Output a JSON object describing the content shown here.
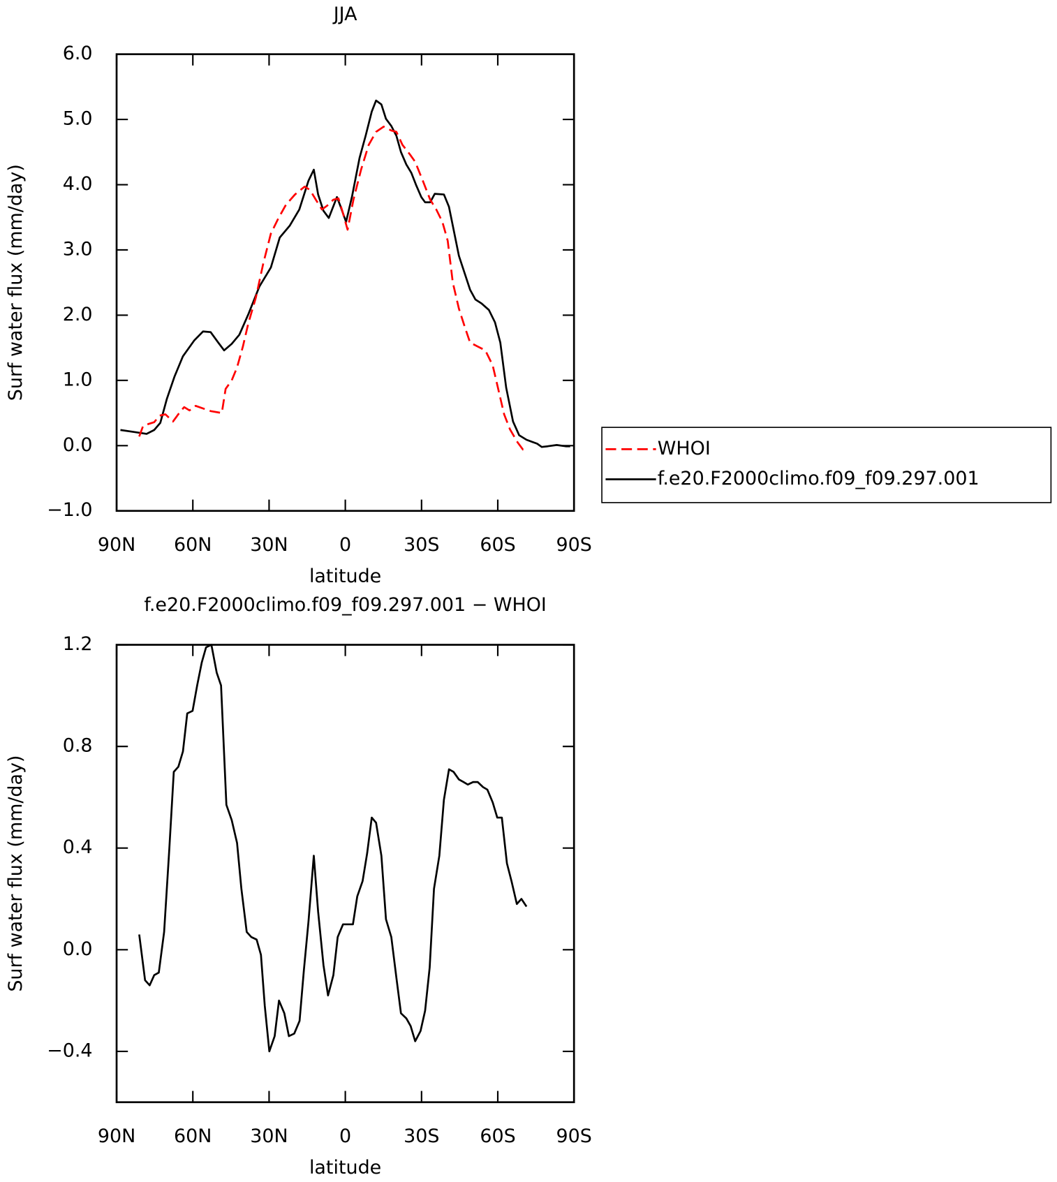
{
  "chart_data": [
    {
      "type": "line",
      "title": "JJA",
      "x_label": "latitude",
      "y_label": "Surf water flux (mm/day)",
      "xlim": [
        90,
        -90
      ],
      "xticks": [
        {
          "value": 90,
          "label": "90N"
        },
        {
          "value": 60,
          "label": "60N"
        },
        {
          "value": 30,
          "label": "30N"
        },
        0,
        {
          "value": -30,
          "label": "30S"
        },
        {
          "value": -60,
          "label": "60S"
        },
        {
          "value": -90,
          "label": "90S"
        }
      ],
      "ylim": [
        -1,
        6
      ],
      "yticks": [
        {
          "value": 6,
          "label": "6.0"
        },
        {
          "value": 5,
          "label": "5.0"
        },
        {
          "value": 4,
          "label": "4.0"
        },
        {
          "value": 3,
          "label": "3.0"
        },
        {
          "value": 2,
          "label": "2.0"
        },
        {
          "value": 1,
          "label": "1.0"
        },
        {
          "value": 0,
          "label": "0.0"
        },
        {
          "value": -1,
          "label": "−1.0"
        }
      ],
      "legend": "outside-right",
      "series": [
        {
          "name": "WHOI",
          "color": "#ff0000",
          "dash": true,
          "x": [
            81.1,
            79.6,
            77.6,
            75.2,
            73.1,
            70.8,
            67.8,
            64.8,
            63.4,
            61.3,
            58.9,
            56.0,
            53.0,
            48.6,
            47.1,
            44.7,
            42.6,
            40.3,
            38.2,
            35.2,
            32.3,
            29.3,
            26.4,
            23.4,
            19.8,
            16.0,
            13.9,
            11.6,
            9.2,
            7.1,
            4.7,
            2.7,
            1.2,
            -0.9,
            -3.2,
            -6.2,
            -9.2,
            -12.1,
            -15.1,
            -18.1,
            -20.1,
            -22.5,
            -25.5,
            -27.5,
            -30.5,
            -33.4,
            -35.8,
            -38.2,
            -40.3,
            -42.3,
            -44.7,
            -47.1,
            -49.1,
            -52.1,
            -55.1,
            -58.0,
            -60.4,
            -62.5,
            -64.8,
            -67.8,
            -69.9,
            -71.3
          ],
          "values": [
            0.14,
            0.3,
            0.33,
            0.36,
            0.46,
            0.48,
            0.37,
            0.53,
            0.59,
            0.54,
            0.61,
            0.57,
            0.53,
            0.5,
            0.87,
            1.0,
            1.2,
            1.52,
            1.87,
            2.27,
            2.79,
            3.25,
            3.48,
            3.69,
            3.85,
            3.97,
            3.92,
            3.77,
            3.62,
            3.68,
            3.77,
            3.79,
            3.6,
            3.31,
            3.77,
            4.23,
            4.61,
            4.81,
            4.89,
            4.83,
            4.81,
            4.61,
            4.46,
            4.35,
            4.06,
            3.77,
            3.62,
            3.43,
            3.14,
            2.5,
            2.1,
            1.81,
            1.58,
            1.52,
            1.46,
            1.23,
            0.83,
            0.48,
            0.25,
            0.05,
            -0.06,
            -0.07
          ]
        },
        {
          "name": "f.e20.F2000climo.f09_f09.297.001",
          "color": "#000000",
          "dash": false,
          "x": [
            88.5,
            83.2,
            78.2,
            75.2,
            72.8,
            70.2,
            67.2,
            63.9,
            59.5,
            56.0,
            53.0,
            50.0,
            47.7,
            44.7,
            41.7,
            38.2,
            33.8,
            29.3,
            25.8,
            21.9,
            18.1,
            14.5,
            12.4,
            10.7,
            8.6,
            6.5,
            3.3,
            2.1,
            -0.3,
            -2.7,
            -5.6,
            -8.0,
            -10.4,
            -12.1,
            -14.2,
            -16.0,
            -18.1,
            -20.1,
            -21.9,
            -24.0,
            -26.0,
            -27.8,
            -29.9,
            -31.4,
            -33.4,
            -35.2,
            -38.8,
            -40.8,
            -44.7,
            -49.1,
            -51.2,
            -53.6,
            -56.5,
            -58.9,
            -61.0,
            -63.3,
            -66.0,
            -68.4,
            -71.3,
            -75.5,
            -77.3,
            -79.6,
            -83.2,
            -86.7,
            -88.5
          ],
          "values": [
            0.24,
            0.21,
            0.18,
            0.24,
            0.35,
            0.72,
            1.06,
            1.37,
            1.61,
            1.75,
            1.74,
            1.58,
            1.46,
            1.56,
            1.7,
            2.01,
            2.44,
            2.73,
            3.19,
            3.37,
            3.62,
            4.06,
            4.23,
            3.85,
            3.6,
            3.49,
            3.81,
            3.69,
            3.43,
            3.83,
            4.41,
            4.75,
            5.12,
            5.29,
            5.23,
            5.01,
            4.9,
            4.75,
            4.5,
            4.31,
            4.18,
            4.0,
            3.81,
            3.73,
            3.73,
            3.86,
            3.85,
            3.66,
            2.91,
            2.39,
            2.24,
            2.18,
            2.08,
            1.89,
            1.58,
            0.89,
            0.37,
            0.16,
            0.09,
            0.03,
            -0.02,
            -0.01,
            0.01,
            -0.01,
            -0.01
          ]
        }
      ]
    },
    {
      "type": "line",
      "title": "f.e20.F2000climo.f09_f09.297.001 − WHOI",
      "x_label": "latitude",
      "y_label": "Surf water flux (mm/day)",
      "xlim": [
        90,
        -90
      ],
      "xticks": [
        {
          "value": 90,
          "label": "90N"
        },
        {
          "value": 60,
          "label": "60N"
        },
        {
          "value": 30,
          "label": "30N"
        },
        0,
        {
          "value": -30,
          "label": "30S"
        },
        {
          "value": -60,
          "label": "60S"
        },
        {
          "value": -90,
          "label": "90S"
        }
      ],
      "ylim": [
        -0.6,
        1.2
      ],
      "yticks": [
        1.2,
        0.8,
        0.4,
        {
          "value": 0,
          "label": "0.0"
        },
        {
          "value": -0.4,
          "label": "−0.4"
        }
      ],
      "series": [
        {
          "color": "#000000",
          "dash": false,
          "x": [
            81.1,
            78.8,
            77.0,
            75.2,
            73.4,
            71.3,
            69.3,
            67.5,
            65.7,
            63.9,
            62.2,
            60.1,
            58.3,
            56.5,
            54.8,
            52.7,
            50.6,
            48.9,
            46.8,
            44.7,
            42.6,
            40.9,
            38.8,
            37.0,
            34.9,
            33.2,
            31.7,
            29.9,
            27.8,
            26.1,
            24.0,
            22.2,
            20.1,
            18.0,
            16.3,
            14.5,
            12.4,
            10.7,
            8.6,
            6.8,
            4.7,
            3.0,
            0.9,
            -0.9,
            -3.0,
            -4.7,
            -6.8,
            -8.6,
            -10.4,
            -12.1,
            -14.2,
            -16.0,
            -18.1,
            -20.1,
            -21.9,
            -24.0,
            -25.7,
            -27.5,
            -29.6,
            -31.4,
            -33.2,
            -34.9,
            -37.0,
            -38.8,
            -40.8,
            -42.6,
            -44.7,
            -46.5,
            -48.2,
            -50.3,
            -52.1,
            -54.2,
            -55.9,
            -58.0,
            -59.8,
            -61.6,
            -63.6,
            -65.4,
            -67.5,
            -69.3,
            -71.3
          ],
          "values": [
            0.06,
            -0.12,
            -0.14,
            -0.1,
            -0.09,
            0.07,
            0.39,
            0.7,
            0.72,
            0.78,
            0.93,
            0.94,
            1.04,
            1.13,
            1.19,
            1.2,
            1.09,
            1.04,
            0.57,
            0.51,
            0.42,
            0.24,
            0.07,
            0.05,
            0.04,
            -0.02,
            -0.22,
            -0.4,
            -0.34,
            -0.2,
            -0.25,
            -0.34,
            -0.33,
            -0.28,
            -0.08,
            0.11,
            0.37,
            0.15,
            -0.06,
            -0.18,
            -0.1,
            0.05,
            0.1,
            0.1,
            0.1,
            0.21,
            0.27,
            0.38,
            0.52,
            0.5,
            0.37,
            0.12,
            0.05,
            -0.11,
            -0.25,
            -0.27,
            -0.3,
            -0.36,
            -0.32,
            -0.24,
            -0.07,
            0.24,
            0.37,
            0.59,
            0.71,
            0.7,
            0.67,
            0.66,
            0.65,
            0.66,
            0.66,
            0.64,
            0.63,
            0.58,
            0.52,
            0.52,
            0.34,
            0.27,
            0.18,
            0.2,
            0.17
          ]
        }
      ]
    }
  ]
}
